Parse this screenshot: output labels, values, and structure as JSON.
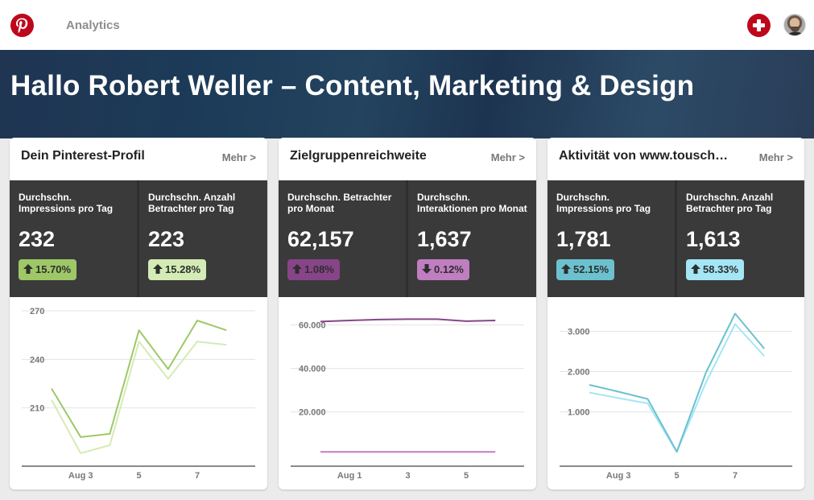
{
  "topbar": {
    "logo_icon": "pinterest-logo-icon",
    "title": "Analytics",
    "add_icon": "plus-circle-icon",
    "avatar_icon": "user-avatar"
  },
  "banner": {
    "title": "Hallo Robert Weller – Content, Marketing & Design"
  },
  "colors": {
    "brand": "#bd081c",
    "green_dark": "#9ec867",
    "green_light": "#d4ebb5",
    "purple_dark": "#884488",
    "purple_light": "#c07ec0",
    "teal_dark": "#6cc1cf",
    "teal_light": "#a4e6f5"
  },
  "cards": [
    {
      "title": "Dein Pinterest-Profil",
      "more": "Mehr >",
      "stats": [
        {
          "label": "Durchschn. Impressions pro Tag",
          "value": "232",
          "change": "15.70%",
          "direction": "up",
          "color": "#9ec867"
        },
        {
          "label": "Durchschn. Anzahl Betrachter pro Tag",
          "value": "223",
          "change": "15.28%",
          "direction": "up",
          "color": "#d4ebb5"
        }
      ]
    },
    {
      "title": "Zielgruppenreichweite",
      "more": "Mehr >",
      "stats": [
        {
          "label": "Durchschn. Betrachter pro Monat",
          "value": "62,157",
          "change": "1.08%",
          "direction": "up",
          "color": "#884488"
        },
        {
          "label": "Durchschn. Interaktionen pro Monat",
          "value": "1,637",
          "change": "0.12%",
          "direction": "down",
          "color": "#c07ec0"
        }
      ]
    },
    {
      "title": "Aktivität von www.tousch…",
      "more": "Mehr >",
      "stats": [
        {
          "label": "Durchschn. Impressions pro Tag",
          "value": "1,781",
          "change": "52.15%",
          "direction": "up",
          "color": "#6cc1cf"
        },
        {
          "label": "Durchschn. Anzahl Betrachter pro Tag",
          "value": "1,613",
          "change": "58.33%",
          "direction": "up",
          "color": "#a4e6f5"
        }
      ]
    }
  ],
  "chart_data": [
    {
      "type": "line",
      "title": "Dein Pinterest-Profil",
      "x": [
        "Aug 2",
        "Aug 3",
        "Aug 4",
        "Aug 5",
        "Aug 6",
        "Aug 7",
        "Aug 8"
      ],
      "xtick_labels": [
        {
          "index": 1,
          "label": "Aug 3"
        },
        {
          "index": 3,
          "label": "5"
        },
        {
          "index": 5,
          "label": "7"
        }
      ],
      "yticks": [
        210,
        240,
        270
      ],
      "ytick_labels": [
        "210",
        "240",
        "270"
      ],
      "ylim": [
        174,
        276
      ],
      "grid": true,
      "series": [
        {
          "name": "Impressions",
          "color": "#9ec867",
          "values": [
            222,
            192,
            194,
            258,
            234,
            264,
            258
          ]
        },
        {
          "name": "Betrachter",
          "color": "#d4ebb5",
          "values": [
            215,
            182,
            187,
            251,
            228,
            251,
            249
          ]
        }
      ]
    },
    {
      "type": "line",
      "title": "Zielgruppenreichweite",
      "x": [
        "Jul 31",
        "Aug 1",
        "Aug 2",
        "Aug 3",
        "Aug 4",
        "Aug 5",
        "Aug 6"
      ],
      "xtick_labels": [
        {
          "index": 1,
          "label": "Aug 1"
        },
        {
          "index": 3,
          "label": "3"
        },
        {
          "index": 5,
          "label": "5"
        }
      ],
      "yticks": [
        20000,
        40000,
        60000
      ],
      "ytick_labels": [
        "20.000",
        "40.000",
        "60.000"
      ],
      "ylim": [
        -5000,
        71000
      ],
      "grid": true,
      "series": [
        {
          "name": "Betrachter",
          "color": "#884488",
          "values": [
            61600,
            62100,
            62500,
            62700,
            62700,
            61800,
            62100
          ]
        },
        {
          "name": "Interaktionen",
          "color": "#c07ec0",
          "values": [
            1600,
            1600,
            1600,
            1600,
            1600,
            1600,
            1600
          ]
        }
      ]
    },
    {
      "type": "line",
      "title": "Aktivität von www.tousch…",
      "x": [
        "Aug 2",
        "Aug 3",
        "Aug 4",
        "Aug 5",
        "Aug 6",
        "Aug 7",
        "Aug 8"
      ],
      "xtick_labels": [
        {
          "index": 1,
          "label": "Aug 3"
        },
        {
          "index": 3,
          "label": "5"
        },
        {
          "index": 5,
          "label": "7"
        }
      ],
      "yticks": [
        1000,
        2000,
        3000
      ],
      "ytick_labels": [
        "1.000",
        "2.000",
        "3.000"
      ],
      "ylim": [
        -350,
        3750
      ],
      "grid": true,
      "series": [
        {
          "name": "Impressions",
          "color": "#6cc1cf",
          "values": [
            1670,
            1500,
            1320,
            10,
            1975,
            3440,
            2570
          ]
        },
        {
          "name": "Betrachter",
          "color": "#a4e6f5",
          "values": [
            1480,
            1340,
            1210,
            0,
            1730,
            3180,
            2385
          ]
        }
      ]
    }
  ]
}
